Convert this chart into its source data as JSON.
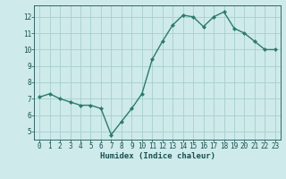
{
  "x": [
    0,
    1,
    2,
    3,
    4,
    5,
    6,
    7,
    8,
    9,
    10,
    11,
    12,
    13,
    14,
    15,
    16,
    17,
    18,
    19,
    20,
    21,
    22,
    23
  ],
  "y": [
    7.1,
    7.3,
    7.0,
    6.8,
    6.6,
    6.6,
    6.4,
    4.8,
    5.6,
    6.4,
    7.3,
    9.4,
    10.5,
    11.5,
    12.1,
    12.0,
    11.4,
    12.0,
    12.3,
    11.3,
    11.0,
    10.5,
    10.0,
    10.0
  ],
  "line_color": "#2d7a6e",
  "marker": "D",
  "marker_size": 2.0,
  "bg_color": "#ceeaea",
  "grid_color": "#a8cece",
  "xlabel": "Humidex (Indice chaleur)",
  "xlim": [
    -0.5,
    23.5
  ],
  "ylim": [
    4.5,
    12.7
  ],
  "yticks": [
    5,
    6,
    7,
    8,
    9,
    10,
    11,
    12
  ],
  "xticks": [
    0,
    1,
    2,
    3,
    4,
    5,
    6,
    7,
    8,
    9,
    10,
    11,
    12,
    13,
    14,
    15,
    16,
    17,
    18,
    19,
    20,
    21,
    22,
    23
  ],
  "font_color": "#1a5050",
  "axis_color": "#1a5050",
  "linewidth": 1.0,
  "tick_fontsize": 5.5,
  "xlabel_fontsize": 6.5
}
